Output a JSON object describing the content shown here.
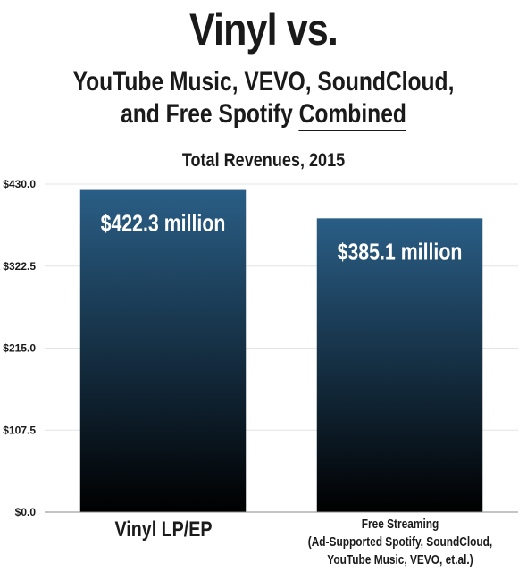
{
  "header": {
    "title": "Vinyl vs.",
    "subtitle_line1": "YouTube Music, VEVO, SoundCloud,",
    "subtitle_line2_pre": "and Free Spotify ",
    "subtitle_line2_emph": "Combined"
  },
  "colors": {
    "bar_top": "#2a5e86",
    "bar_bottom": "#000000",
    "grid": "#e4e4e4",
    "text": "#1a1a1a",
    "bar_text": "#ffffff"
  },
  "chart_data": {
    "type": "bar",
    "title": "Total Revenues, 2015",
    "categories": [
      "Vinyl LP/EP",
      "Free Streaming"
    ],
    "category_sublabels": [
      "",
      "(Ad-Supported Spotify, SoundCloud,|YouTube Music, VEVO, et.al.)"
    ],
    "values": [
      422.3,
      385.1
    ],
    "data_labels": [
      "$422.3 million",
      "$385.1 million"
    ],
    "yticks": [
      0,
      107.5,
      215,
      322.5,
      430
    ],
    "ytick_labels": [
      "$0.0",
      "$107.5",
      "$215.0",
      "$322.5",
      "$430.0"
    ],
    "ylim": [
      0,
      430
    ],
    "grid": true,
    "legend": "none"
  }
}
